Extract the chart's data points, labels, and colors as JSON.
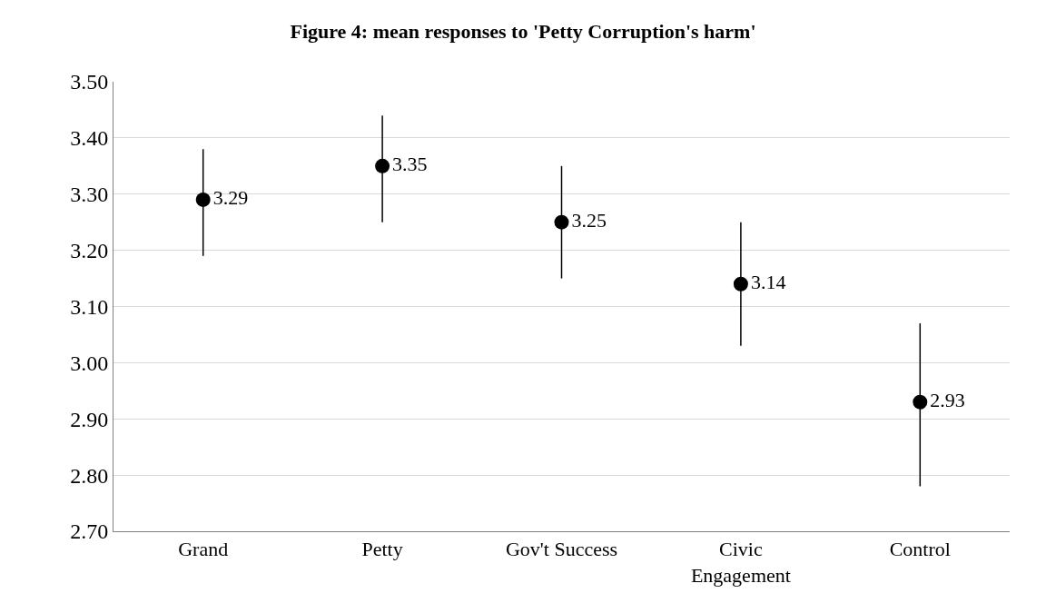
{
  "chart_data": {
    "type": "scatter",
    "title": "Figure 4: mean responses to 'Petty Corruption's harm'",
    "categories": [
      "Grand",
      "Petty",
      "Gov't Success",
      "Civic Engagement",
      "Control"
    ],
    "series": [
      {
        "color": "#000000",
        "values": [
          3.29,
          3.35,
          3.25,
          3.14,
          2.93
        ],
        "errors": [
          [
            3.19,
            3.38
          ],
          [
            3.25,
            3.44
          ],
          [
            3.15,
            3.35
          ],
          [
            3.03,
            3.25
          ],
          [
            2.78,
            3.07
          ]
        ]
      }
    ],
    "data_labels": true,
    "marker": "circle",
    "ylim": [
      2.7,
      3.5
    ],
    "yticks": [
      {
        "value": 2.7,
        "label": "2.70"
      },
      {
        "value": 2.8,
        "label": "2.80"
      },
      {
        "value": 2.9,
        "label": "2.90"
      },
      {
        "value": 3.0,
        "label": "3.00"
      },
      {
        "value": 3.1,
        "label": "3.10"
      },
      {
        "value": 3.2,
        "label": "3.20"
      },
      {
        "value": 3.3,
        "label": "3.30"
      },
      {
        "value": 3.4,
        "label": "3.40"
      },
      {
        "value": 3.5,
        "label": "3.50"
      }
    ],
    "grid": "y",
    "legend": false
  }
}
